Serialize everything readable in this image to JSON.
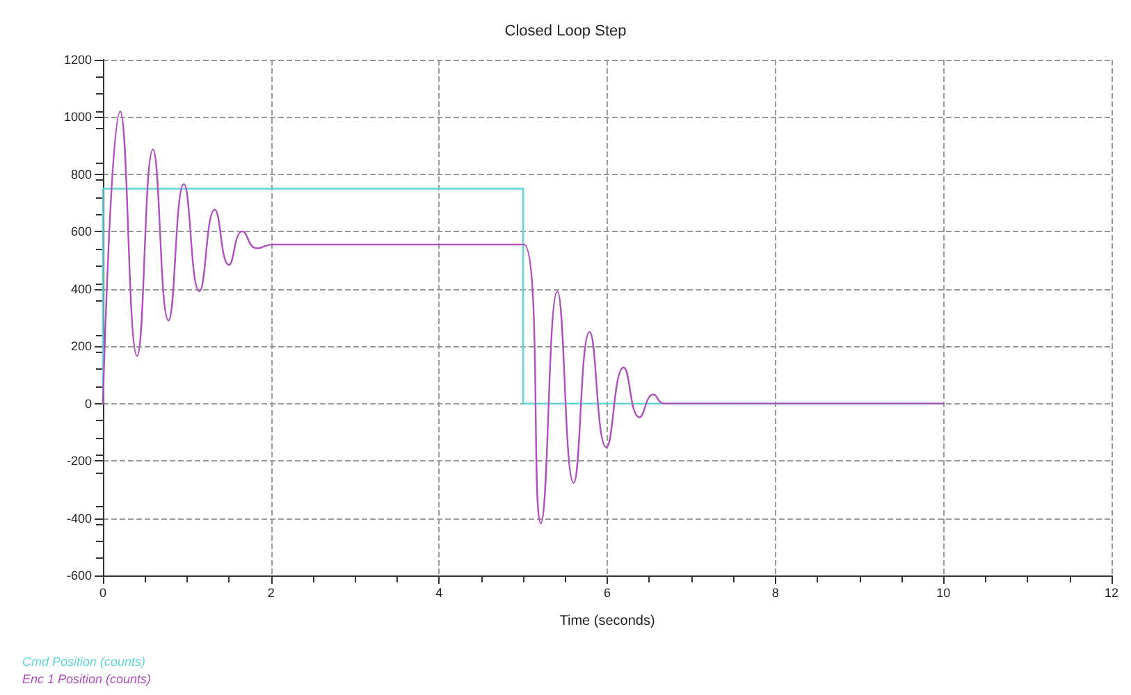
{
  "chart_data": {
    "type": "line",
    "title": "Closed Loop Step",
    "xlabel": "Time (seconds)",
    "xlim": [
      0,
      12
    ],
    "xticks": [
      0,
      2,
      4,
      6,
      8,
      10,
      12
    ],
    "ylim": [
      -600,
      1200
    ],
    "yticks": [
      -600,
      -400,
      -200,
      0,
      200,
      400,
      600,
      800,
      1000,
      1200
    ],
    "grid": true,
    "legend": "bottom left",
    "marker": "none",
    "line_style": "solid",
    "series": [
      {
        "name": "Cmd Position (counts)",
        "type": "step",
        "color": "#5fd6d6",
        "x": [
          0,
          0,
          5,
          10
        ],
        "values": [
          0,
          750,
          0,
          0
        ]
      },
      {
        "name": "Enc 1 Position (counts)",
        "type": "line",
        "color": "#b04fc0",
        "x": [
          0,
          0.206,
          0.406,
          0.595,
          0.78,
          0.963,
          1.147,
          1.331,
          1.5,
          1.66,
          1.83,
          2.02,
          5.01,
          5.21,
          5.406,
          5.6,
          5.79,
          5.99,
          6.196,
          6.385,
          6.55,
          6.68,
          10
        ],
        "values": [
          0,
          1020,
          166,
          887,
          290,
          766,
          392,
          677,
          484,
          601,
          542,
          555,
          555,
          -418,
          392,
          -277,
          250,
          -153,
          126,
          -48,
          32,
          0,
          0
        ]
      }
    ]
  }
}
